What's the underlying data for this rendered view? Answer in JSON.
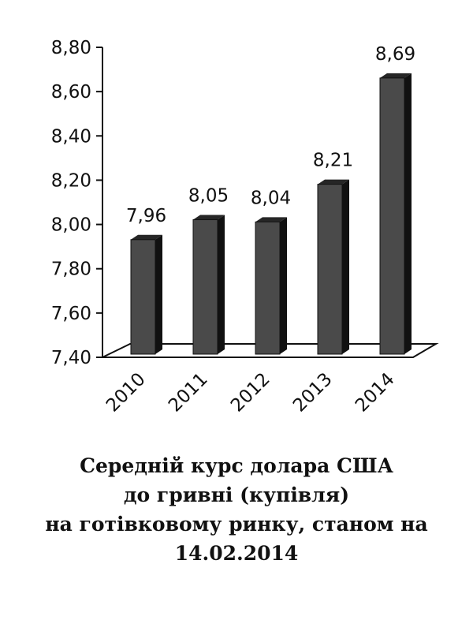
{
  "chart_data": {
    "type": "bar",
    "categories": [
      "2010",
      "2011",
      "2012",
      "2013",
      "2014"
    ],
    "values": [
      7.96,
      8.05,
      8.04,
      8.21,
      8.69
    ],
    "value_labels": [
      "7,96",
      "8,05",
      "8,04",
      "8,21",
      "8,69"
    ],
    "y_ticks": [
      "7,40",
      "7,60",
      "7,80",
      "8,00",
      "8,20",
      "8,40",
      "8,60",
      "8,80"
    ],
    "ylim": [
      7.4,
      8.8
    ],
    "grid": false,
    "legend": "none",
    "style": "3d-columns",
    "colors": {
      "bar_front": "#4a4a4a",
      "bar_side": "#111111",
      "bar_top": "#262626"
    }
  },
  "caption": {
    "line1": "Середній курс долара США",
    "line2": "до гривні (купівля)",
    "line3": "на готівковому ринку, станом на",
    "line4": "14.02.2014"
  }
}
